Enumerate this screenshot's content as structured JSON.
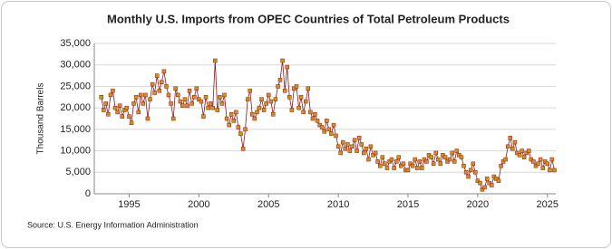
{
  "chart_data": {
    "type": "line",
    "title": "Monthly U.S. Imports from OPEC Countries of Total Petroleum Products",
    "y_label": "Thousand Barrels",
    "source": "Source: U.S. Energy Information Administration",
    "x": [
      1993,
      1993.17,
      1993.33,
      1993.5,
      1993.67,
      1993.83,
      1994,
      1994.17,
      1994.33,
      1994.5,
      1994.67,
      1994.83,
      1995,
      1995.17,
      1995.33,
      1995.5,
      1995.67,
      1995.83,
      1996,
      1996.17,
      1996.33,
      1996.5,
      1996.67,
      1996.83,
      1997,
      1997.17,
      1997.33,
      1997.5,
      1997.67,
      1997.83,
      1998,
      1998.17,
      1998.33,
      1998.5,
      1998.67,
      1998.83,
      1999,
      1999.17,
      1999.33,
      1999.5,
      1999.67,
      1999.83,
      2000,
      2000.17,
      2000.33,
      2000.5,
      2000.67,
      2000.83,
      2001,
      2001.17,
      2001.33,
      2001.5,
      2001.67,
      2001.83,
      2002,
      2002.17,
      2002.33,
      2002.5,
      2002.67,
      2002.83,
      2003,
      2003.17,
      2003.33,
      2003.5,
      2003.67,
      2003.83,
      2004,
      2004.17,
      2004.33,
      2004.5,
      2004.67,
      2004.83,
      2005,
      2005.17,
      2005.33,
      2005.5,
      2005.67,
      2005.83,
      2006,
      2006.17,
      2006.33,
      2006.5,
      2006.67,
      2006.83,
      2007,
      2007.17,
      2007.33,
      2007.5,
      2007.67,
      2007.83,
      2008,
      2008.17,
      2008.33,
      2008.5,
      2008.67,
      2008.83,
      2009,
      2009.17,
      2009.33,
      2009.5,
      2009.67,
      2009.83,
      2010,
      2010.17,
      2010.33,
      2010.5,
      2010.67,
      2010.83,
      2011,
      2011.17,
      2011.33,
      2011.5,
      2011.67,
      2011.83,
      2012,
      2012.17,
      2012.33,
      2012.5,
      2012.67,
      2012.83,
      2013,
      2013.17,
      2013.33,
      2013.5,
      2013.67,
      2013.83,
      2014,
      2014.17,
      2014.33,
      2014.5,
      2014.67,
      2014.83,
      2015,
      2015.17,
      2015.33,
      2015.5,
      2015.67,
      2015.83,
      2016,
      2016.17,
      2016.33,
      2016.5,
      2016.67,
      2016.83,
      2017,
      2017.17,
      2017.33,
      2017.5,
      2017.67,
      2017.83,
      2018,
      2018.17,
      2018.33,
      2018.5,
      2018.67,
      2018.83,
      2019,
      2019.17,
      2019.33,
      2019.5,
      2019.67,
      2019.83,
      2020,
      2020.17,
      2020.33,
      2020.5,
      2020.67,
      2020.83,
      2021,
      2021.17,
      2021.33,
      2021.5,
      2021.67,
      2021.83,
      2022,
      2022.17,
      2022.33,
      2022.5,
      2022.67,
      2022.83,
      2023,
      2023.17,
      2023.33,
      2023.5,
      2023.67,
      2023.83,
      2024,
      2024.17,
      2024.33,
      2024.5,
      2024.67,
      2024.83,
      2025,
      2025.17,
      2025.33,
      2025.5
    ],
    "series": [
      {
        "color": "#d4901e",
        "line_color": "#8b1a1a",
        "values": [
          22500,
          19500,
          21000,
          18500,
          23000,
          24000,
          20000,
          19000,
          20500,
          18000,
          19500,
          20000,
          18000,
          16500,
          21000,
          22500,
          19000,
          23000,
          21000,
          23000,
          17500,
          22000,
          25500,
          23500,
          27500,
          24000,
          26000,
          28500,
          25000,
          23000,
          21000,
          17500,
          24500,
          23000,
          21500,
          20500,
          22000,
          20500,
          24000,
          21000,
          22500,
          24500,
          22000,
          21500,
          18000,
          22500,
          20000,
          21000,
          20000,
          31000,
          19500,
          22500,
          21000,
          23000,
          17500,
          16000,
          18500,
          17000,
          19000,
          15500,
          14000,
          10500,
          15000,
          22000,
          24000,
          18500,
          17500,
          19000,
          20000,
          22000,
          19500,
          21000,
          23000,
          21500,
          18500,
          22000,
          25000,
          26500,
          31000,
          24000,
          29500,
          22500,
          19500,
          24500,
          25000,
          20000,
          22500,
          19000,
          21500,
          24500,
          19000,
          17500,
          18500,
          17000,
          16000,
          15500,
          14500,
          17000,
          15000,
          14000,
          16000,
          13500,
          11000,
          9500,
          12000,
          10500,
          11500,
          10000,
          11000,
          12500,
          10000,
          13000,
          11500,
          9500,
          10500,
          8000,
          11000,
          9000,
          9500,
          7500,
          6500,
          8500,
          7000,
          6000,
          7500,
          8000,
          6000,
          7500,
          8500,
          6500,
          7000,
          5500,
          5500,
          7000,
          6500,
          8000,
          6000,
          7500,
          6000,
          8000,
          7500,
          9000,
          8500,
          7000,
          9500,
          8000,
          7000,
          9000,
          8500,
          7500,
          8000,
          9500,
          7500,
          10000,
          9000,
          8500,
          6500,
          5000,
          4000,
          5500,
          7000,
          5000,
          3000,
          2500,
          1000,
          1500,
          3500,
          2500,
          2000,
          4000,
          3500,
          3000,
          6500,
          7500,
          8000,
          11000,
          13000,
          10500,
          12000,
          9500,
          9000,
          10000,
          8500,
          9500,
          10000,
          8000,
          7500,
          6500,
          7000,
          8000,
          6000,
          7500,
          7000,
          5500,
          8000,
          5500
        ]
      }
    ],
    "xlim": [
      1992.5,
      2025.6
    ],
    "xticks": [
      1995,
      2000,
      2005,
      2010,
      2015,
      2020,
      2025
    ],
    "ylim": [
      0,
      35000
    ],
    "yticks": [
      0,
      {
        "value": 5000,
        "label": "5,000"
      },
      {
        "value": 10000,
        "label": "10,000"
      },
      {
        "value": 15000,
        "label": "15,000"
      },
      {
        "value": 20000,
        "label": "20,000"
      },
      {
        "value": 25000,
        "label": "25,000"
      },
      {
        "value": 30000,
        "label": "30,000"
      },
      {
        "value": 35000,
        "label": "35,000"
      }
    ],
    "grid": true
  }
}
